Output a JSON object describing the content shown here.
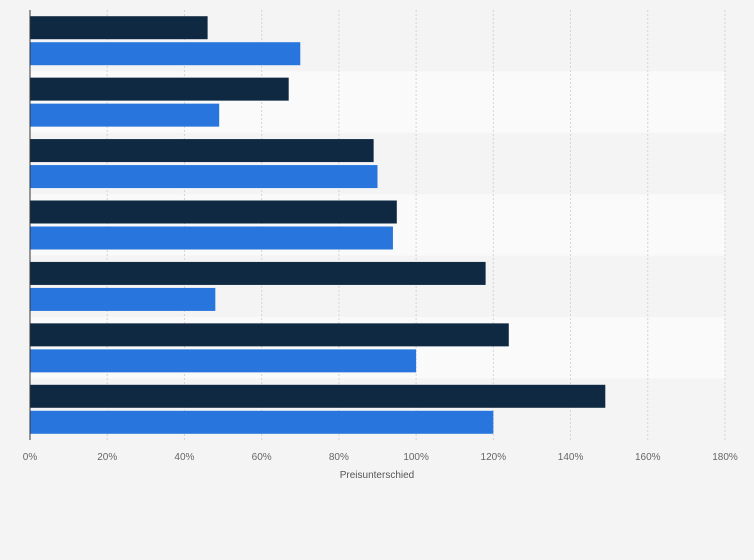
{
  "chart_data": {
    "type": "bar",
    "orientation": "horizontal",
    "categories": [
      "",
      "",
      "",
      "",
      "",
      "",
      ""
    ],
    "series": [
      {
        "color": "#0f2942",
        "values": [
          46,
          67,
          89,
          95,
          118,
          124,
          149
        ]
      },
      {
        "color": "#2876dd",
        "values": [
          70,
          49,
          90,
          94,
          48,
          100,
          120
        ]
      }
    ],
    "xlabel": "Preisunterschied",
    "ylabel": "",
    "xlim": [
      0,
      180
    ],
    "x_ticks": [
      "0%",
      "20%",
      "40%",
      "60%",
      "80%",
      "100%",
      "120%",
      "140%",
      "160%",
      "180%"
    ],
    "grid": true,
    "legend": "none"
  }
}
